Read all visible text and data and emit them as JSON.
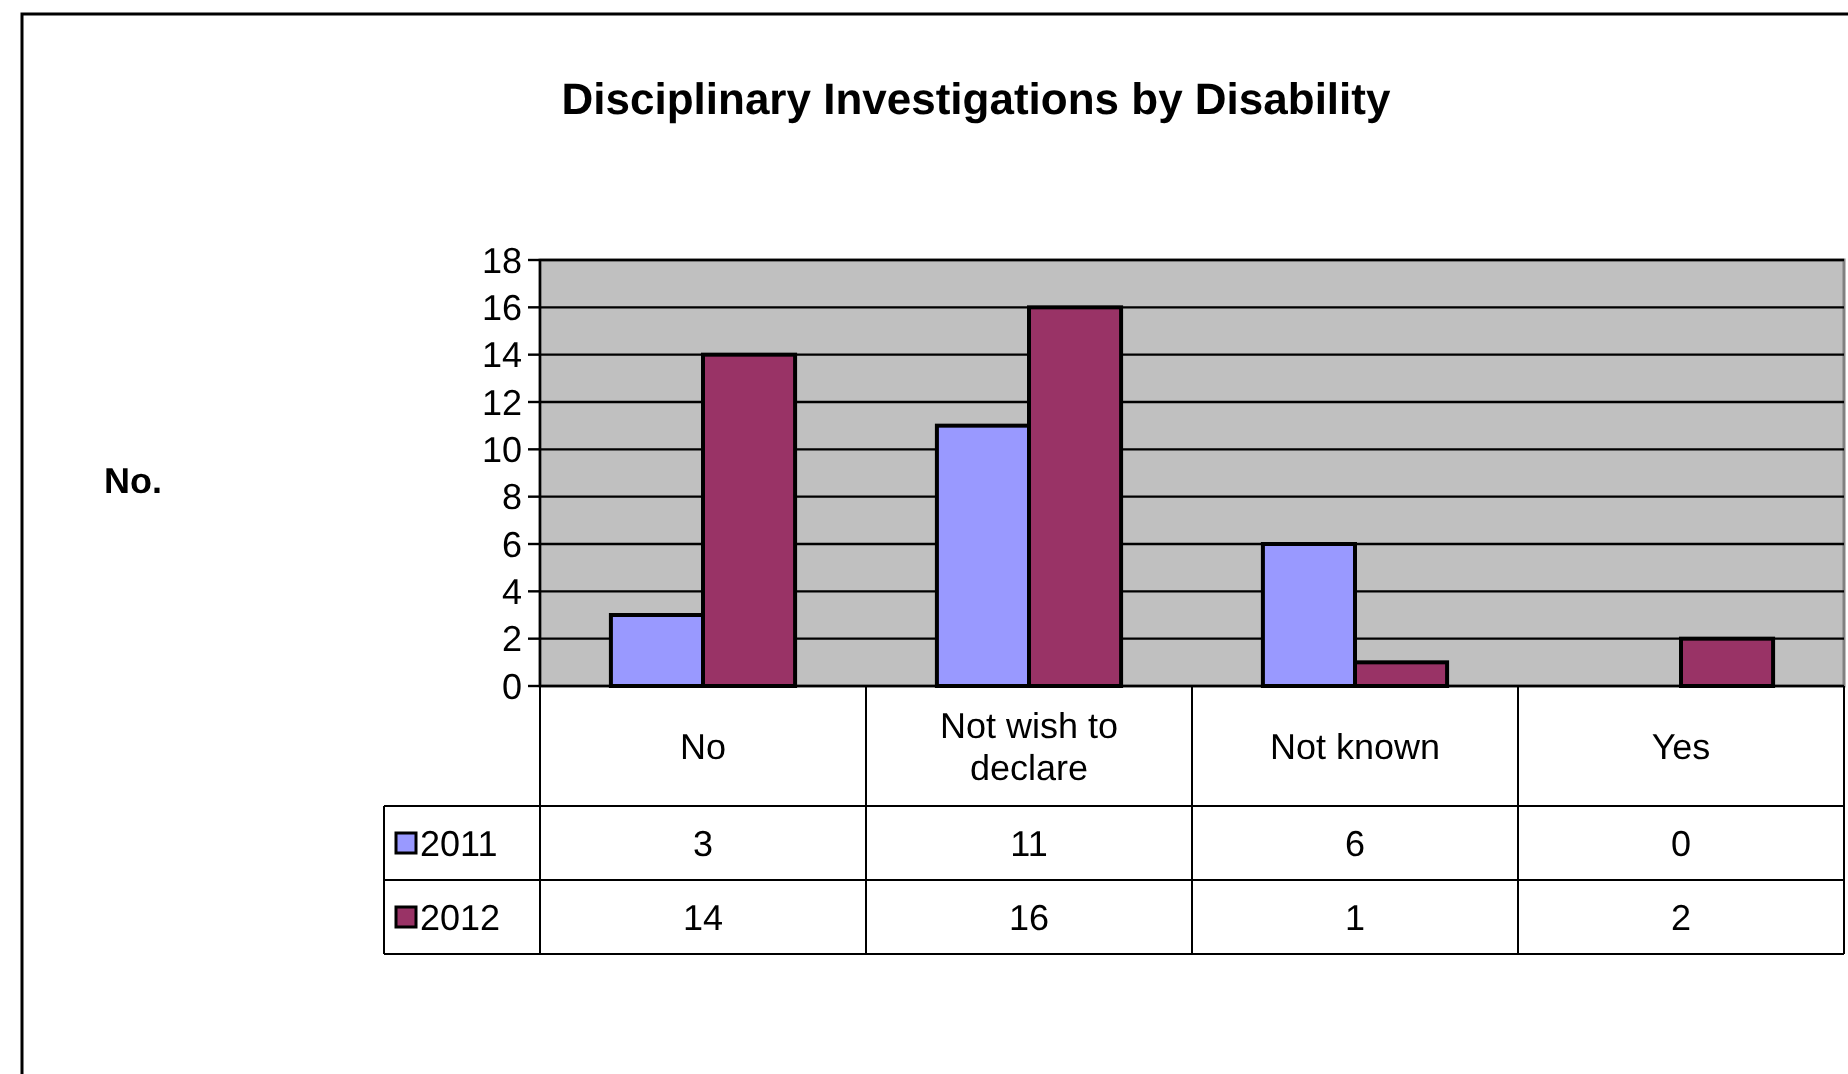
{
  "chart_data": {
    "type": "bar",
    "title": "Disciplinary Investigations by Disability",
    "annotations": [
      "No."
    ],
    "categories": [
      "No",
      "Not wish to declare",
      "Not known",
      "Yes"
    ],
    "series": [
      {
        "name": "2011",
        "color": "#9999ff",
        "values": [
          3,
          11,
          6,
          0
        ]
      },
      {
        "name": "2012",
        "color": "#993366",
        "values": [
          14,
          16,
          1,
          2
        ]
      }
    ],
    "ylim": [
      0,
      18
    ],
    "yticks": [
      0,
      2,
      4,
      6,
      8,
      10,
      12,
      14,
      16,
      18
    ],
    "grid": "y",
    "legend": "bottom",
    "data_labels": true
  }
}
